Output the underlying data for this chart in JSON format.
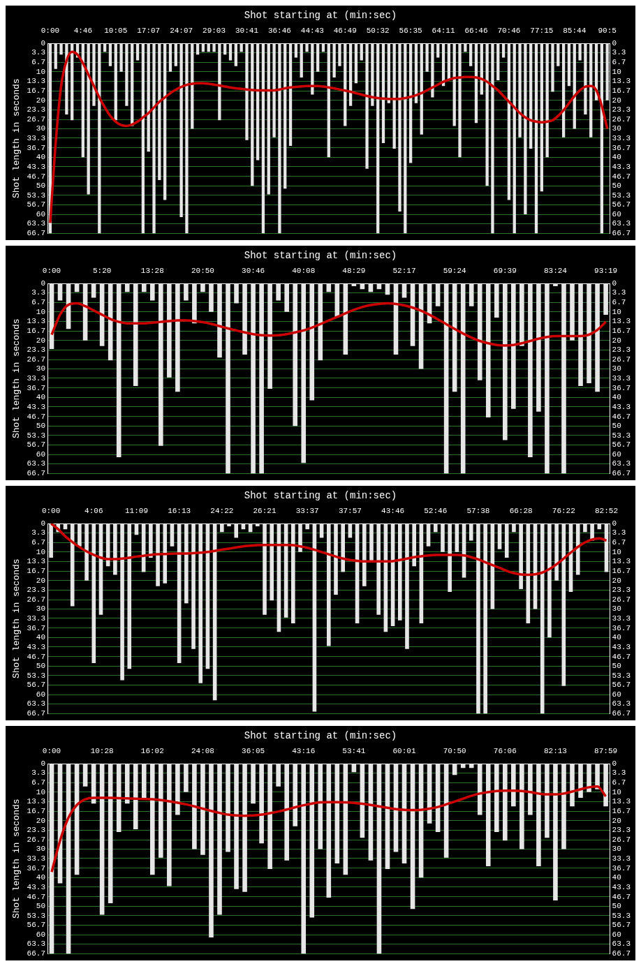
{
  "chart_data": [
    {
      "type": "bar",
      "title": "Shot starting at (min:sec)",
      "ylabel": "Shot length in seconds",
      "grid": "y",
      "marker": "none",
      "categories": [
        "0:00",
        null,
        null,
        null,
        null,
        null,
        "4:46",
        null,
        null,
        null,
        null,
        null,
        "10:05",
        null,
        null,
        null,
        null,
        null,
        "17:07",
        null,
        null,
        null,
        null,
        null,
        "24:07",
        null,
        null,
        null,
        null,
        null,
        "29:03",
        null,
        null,
        null,
        null,
        null,
        "30:41",
        null,
        null,
        null,
        null,
        null,
        "36:46",
        null,
        null,
        null,
        null,
        null,
        "44:43",
        null,
        null,
        null,
        null,
        null,
        "46:49",
        null,
        null,
        null,
        null,
        null,
        "50:32",
        null,
        null,
        null,
        null,
        null,
        "56:35",
        null,
        null,
        null,
        null,
        null,
        "64:11",
        null,
        null,
        null,
        null,
        null,
        "66:46",
        null,
        null,
        null,
        null,
        null,
        "70:46",
        null,
        null,
        null,
        null,
        null,
        "77:15",
        null,
        null,
        null,
        null,
        null,
        "85:44",
        null,
        null,
        null,
        null,
        null,
        "90:5"
      ],
      "ylim": [
        66.7,
        0
      ],
      "yticks": [
        0,
        3.3,
        6.7,
        10,
        13.3,
        16.7,
        20,
        23.3,
        26.7,
        30,
        33.3,
        36.7,
        40,
        43.3,
        46.7,
        50,
        53.3,
        56.7,
        60,
        63.3,
        66.7
      ],
      "y2lim": [
        66.7,
        0
      ],
      "y2ticks": [
        0,
        3.3,
        6.7,
        10,
        13.3,
        16.7,
        20,
        23.3,
        26.7,
        30,
        33.3,
        36.7,
        40,
        43.3,
        46.7,
        50,
        53.3,
        56.7,
        60,
        63.3,
        66.7
      ],
      "series": [
        {
          "color": "#e6e6e6",
          "values": [
            66.7,
            9,
            4,
            25,
            27,
            5,
            40,
            53,
            22,
            66.7,
            3,
            8,
            27,
            10,
            22,
            29,
            6,
            66.7,
            38,
            66.7,
            48,
            55,
            10,
            8,
            61,
            66.7,
            30,
            4,
            3,
            3,
            3,
            27,
            4,
            6,
            8,
            3,
            34,
            50,
            41,
            66.7,
            53,
            33,
            66.7,
            51,
            36,
            5,
            12,
            3,
            18,
            10,
            3,
            40,
            12,
            8,
            29,
            22,
            14,
            6,
            44,
            22,
            66.7,
            35,
            21,
            37,
            59,
            66.7,
            42,
            21,
            32,
            10,
            19,
            5,
            15,
            13,
            29,
            40,
            3,
            8,
            28,
            18,
            50,
            66.7,
            13,
            5,
            55,
            66.7,
            33,
            60,
            37,
            66.7,
            52,
            40,
            17,
            8,
            33,
            15,
            30,
            6,
            25,
            33,
            20,
            66.7,
            20
          ]
        },
        {
          "type": "line",
          "color": "#cc0000",
          "values": [
            63,
            35,
            15,
            6,
            3,
            4,
            7,
            11,
            15,
            19,
            22.5,
            25.5,
            27.5,
            28.7,
            29,
            28.5,
            27.5,
            26,
            24.5,
            22.5,
            20.5,
            19,
            17.5,
            16.3,
            15.3,
            14.6,
            14.2,
            14,
            14,
            14.2,
            14.5,
            14.8,
            15.2,
            15.5,
            15.8,
            16,
            16.2,
            16.4,
            16.5,
            16.5,
            16.5,
            16.5,
            16.2,
            15.8,
            15.5,
            15.3,
            15.1,
            15,
            15,
            15,
            15.2,
            15.5,
            15.8,
            16.2,
            16.6,
            17,
            17.5,
            18,
            18.5,
            18.9,
            19.2,
            19.4,
            19.5,
            19.5,
            19.5,
            19.2,
            18.8,
            18.2,
            17.5,
            16.5,
            15.5,
            14.5,
            13.5,
            12.8,
            12.2,
            12,
            11.8,
            11.8,
            12,
            12.5,
            13.5,
            15,
            16.5,
            18.5,
            20.5,
            22.5,
            24.5,
            26,
            27,
            27.5,
            27.7,
            27.5,
            27,
            25.5,
            23.5,
            21,
            18.5,
            16.5,
            15.2,
            15,
            16.5,
            22,
            30
          ]
        }
      ]
    },
    {
      "type": "bar",
      "title": "Shot starting at (min:sec)",
      "ylabel": "Shot length in seconds",
      "grid": "y",
      "marker": "none",
      "categories": [
        "0:00",
        null,
        null,
        null,
        null,
        null,
        "5:20",
        null,
        null,
        null,
        null,
        null,
        "13:28",
        null,
        null,
        null,
        null,
        null,
        "20:50",
        null,
        null,
        null,
        null,
        null,
        "30:46",
        null,
        null,
        null,
        null,
        null,
        "40:08",
        null,
        null,
        null,
        null,
        null,
        "48:29",
        null,
        null,
        null,
        null,
        null,
        "52:17",
        null,
        null,
        null,
        null,
        null,
        "59:24",
        null,
        null,
        null,
        null,
        null,
        "69:39",
        null,
        null,
        null,
        null,
        null,
        "83:24",
        null,
        null,
        null,
        null,
        null,
        "93:19"
      ],
      "ylim": [
        66.7,
        0
      ],
      "yticks": [
        0,
        3.3,
        6.7,
        10,
        13.3,
        16.7,
        20,
        23.3,
        26.7,
        30,
        33.3,
        36.7,
        40,
        43.3,
        46.7,
        50,
        53.3,
        56.7,
        60,
        63.3,
        66.7
      ],
      "y2lim": [
        66.7,
        0
      ],
      "y2ticks": [
        0,
        3.3,
        6.7,
        10,
        13.3,
        16.7,
        20,
        23.3,
        26.7,
        30,
        33.3,
        36.7,
        40,
        43.3,
        46.7,
        50,
        53.3,
        56.7,
        60,
        63.3,
        66.7
      ],
      "series": [
        {
          "color": "#e6e6e6",
          "values": [
            23,
            6,
            16,
            3,
            20,
            5,
            22,
            27,
            61,
            3,
            36,
            3,
            6,
            57,
            33,
            38,
            6,
            14,
            3,
            10,
            26,
            66.7,
            7,
            25,
            66.7,
            66.7,
            37,
            6,
            10,
            50,
            63,
            41,
            27,
            3,
            12,
            25,
            1,
            2,
            3,
            2,
            4,
            25,
            5,
            22,
            30,
            14,
            8,
            66.7,
            38,
            66.7,
            8,
            34,
            47,
            12,
            55,
            44,
            22,
            61,
            45,
            66.7,
            1,
            66.7,
            20,
            36,
            35,
            38,
            11
          ]
        },
        {
          "type": "line",
          "color": "#cc0000",
          "values": [
            18,
            11,
            7.5,
            7,
            8,
            9.5,
            11,
            12.5,
            13.5,
            14,
            14,
            14,
            13.8,
            13.5,
            13.2,
            13,
            13,
            13.2,
            13.6,
            14.2,
            15,
            15.8,
            16.5,
            17.2,
            17.8,
            18.2,
            18.3,
            18.2,
            17.8,
            17.2,
            16.5,
            15.5,
            14.3,
            13,
            11.8,
            10.5,
            9.3,
            8.3,
            7.6,
            7.2,
            7,
            7.2,
            7.7,
            8.5,
            9.6,
            11,
            12.6,
            14.3,
            16,
            17.6,
            19,
            20.2,
            21,
            21.6,
            21.8,
            21.6,
            21,
            20.2,
            19.4,
            18.8,
            18.5,
            18.5,
            18.5,
            18.5,
            18,
            16.3,
            13.5
          ]
        }
      ]
    },
    {
      "type": "bar",
      "title": "Shot starting at (min:sec)",
      "ylabel": "Shot length in seconds",
      "grid": "y",
      "marker": "none",
      "categories": [
        "0:00",
        null,
        null,
        null,
        null,
        null,
        "4:06",
        null,
        null,
        null,
        null,
        null,
        "11:09",
        null,
        null,
        null,
        null,
        null,
        "16:13",
        null,
        null,
        null,
        null,
        null,
        "24:22",
        null,
        null,
        null,
        null,
        null,
        "26:21",
        null,
        null,
        null,
        null,
        null,
        "33:37",
        null,
        null,
        null,
        null,
        null,
        "37:57",
        null,
        null,
        null,
        null,
        null,
        "43:46",
        null,
        null,
        null,
        null,
        null,
        "52:46",
        null,
        null,
        null,
        null,
        null,
        "57:38",
        null,
        null,
        null,
        null,
        null,
        "66:28",
        null,
        null,
        null,
        null,
        null,
        "76:22",
        null,
        null,
        null,
        null,
        null,
        "82:52"
      ],
      "ylim": [
        66.7,
        0
      ],
      "yticks": [
        0,
        3.3,
        6.7,
        10,
        13.3,
        16.7,
        20,
        23.3,
        26.7,
        30,
        33.3,
        36.7,
        40,
        43.3,
        46.7,
        50,
        53.3,
        56.7,
        60,
        63.3,
        66.7
      ],
      "y2lim": [
        66.7,
        0
      ],
      "y2ticks": [
        0,
        3.3,
        6.7,
        10,
        13.3,
        16.7,
        20,
        23.3,
        26.7,
        30,
        33.3,
        36.7,
        40,
        43.3,
        46.7,
        50,
        53.3,
        56.7,
        60,
        63.3,
        66.7
      ],
      "series": [
        {
          "color": "#e6e6e6",
          "values": [
            12,
            3,
            2,
            29,
            8,
            20,
            49,
            32,
            15,
            18,
            55,
            51,
            4,
            17,
            12,
            22,
            21,
            8,
            49,
            28,
            44,
            56,
            51,
            62,
            3,
            1,
            5,
            2,
            3,
            1,
            32,
            27,
            38,
            33,
            35,
            10,
            2,
            66,
            5,
            43,
            25,
            17,
            5,
            35,
            22,
            13,
            32,
            38,
            36,
            34,
            44,
            15,
            35,
            8,
            3,
            10,
            24,
            10,
            19,
            6,
            66.7,
            66.7,
            30,
            9,
            12,
            3,
            23,
            35,
            30,
            66.7,
            40,
            20,
            57,
            24,
            18,
            3,
            6,
            2,
            17
          ]
        },
        {
          "type": "line",
          "color": "#cc0000",
          "values": [
            0,
            2,
            4.5,
            6.5,
            8.3,
            9.8,
            11,
            12,
            12.5,
            12.5,
            12.3,
            12,
            11.6,
            11.3,
            11,
            10.8,
            10.7,
            10.6,
            10.5,
            10.5,
            10.4,
            10.2,
            10,
            9.6,
            9.2,
            8.8,
            8.4,
            8,
            7.8,
            7.6,
            7.5,
            7.5,
            7.5,
            7.5,
            7.6,
            8,
            8.5,
            9.2,
            10,
            10.8,
            11.6,
            12.3,
            12.8,
            13.1,
            13.3,
            13.3,
            13.3,
            13.3,
            13.2,
            12.8,
            12.3,
            11.8,
            11.5,
            11.2,
            11,
            11,
            11,
            11,
            11.2,
            11.8,
            12.6,
            13.6,
            14.6,
            15.6,
            16.6,
            17.4,
            17.9,
            18,
            17.8,
            17.2,
            16,
            14.3,
            12.3,
            10.2,
            8.2,
            6.6,
            5.6,
            5.2,
            6
          ]
        }
      ]
    },
    {
      "type": "bar",
      "title": "Shot starting at (min:sec)",
      "ylabel": "Shot length in seconds",
      "grid": "y",
      "marker": "none",
      "categories": [
        "0:00",
        null,
        null,
        null,
        null,
        null,
        "10:28",
        null,
        null,
        null,
        null,
        null,
        "16:02",
        null,
        null,
        null,
        null,
        null,
        "24:08",
        null,
        null,
        null,
        null,
        null,
        "36:05",
        null,
        null,
        null,
        null,
        null,
        "43:16",
        null,
        null,
        null,
        null,
        null,
        "53:41",
        null,
        null,
        null,
        null,
        null,
        "60:01",
        null,
        null,
        null,
        null,
        null,
        "70:50",
        null,
        null,
        null,
        null,
        null,
        "76:06",
        null,
        null,
        null,
        null,
        null,
        "82:13",
        null,
        null,
        null,
        null,
        null,
        "87:59"
      ],
      "ylim": [
        66.7,
        0
      ],
      "yticks": [
        0,
        3.3,
        6.7,
        10,
        13.3,
        16.7,
        20,
        23.3,
        26.7,
        30,
        33.3,
        36.7,
        40,
        43.3,
        46.7,
        50,
        53.3,
        56.7,
        60,
        63.3,
        66.7
      ],
      "y2lim": [
        66.7,
        0
      ],
      "y2ticks": [
        0,
        3.3,
        6.7,
        10,
        13.3,
        16.7,
        20,
        23.3,
        26.7,
        30,
        33.3,
        36.7,
        40,
        43.3,
        46.7,
        50,
        53.3,
        56.7,
        60,
        63.3,
        66.7
      ],
      "series": [
        {
          "color": "#e6e6e6",
          "values": [
            66.7,
            42,
            66.7,
            39,
            8,
            14,
            53,
            49,
            24,
            14,
            23,
            12,
            39,
            33,
            43,
            18,
            10,
            30,
            32,
            61,
            53,
            31,
            44,
            45,
            14,
            28,
            37,
            8,
            34,
            22,
            66.7,
            54,
            30,
            47,
            35,
            39,
            3,
            26,
            34,
            66.7,
            37,
            31,
            35,
            51,
            40,
            21,
            24,
            33,
            4,
            1.5,
            1.5,
            18,
            36,
            24,
            27,
            15,
            30,
            18,
            36,
            26,
            48,
            30,
            15,
            12,
            10,
            9,
            15
          ]
        },
        {
          "type": "line",
          "color": "#cc0000",
          "values": [
            38,
            27,
            19,
            14.5,
            12.5,
            12,
            12,
            12,
            12.1,
            12.2,
            12.3,
            12.4,
            12.5,
            12.8,
            13.2,
            13.7,
            14.3,
            15,
            15.8,
            16.6,
            17.3,
            17.9,
            18.2,
            18.3,
            18.2,
            17.9,
            17.4,
            16.8,
            16.1,
            15.3,
            14.6,
            14,
            13.6,
            13.5,
            13.5,
            13.6,
            13.8,
            14.1,
            14.5,
            15,
            15.5,
            16,
            16.2,
            16.3,
            16.2,
            15.8,
            15.2,
            14.3,
            13.3,
            12.3,
            11.3,
            10.5,
            10,
            9.6,
            9.5,
            9.5,
            9.6,
            10,
            10.5,
            10.8,
            10.8,
            10.5,
            9.8,
            9,
            8.3,
            8,
            11.5
          ]
        }
      ]
    }
  ]
}
